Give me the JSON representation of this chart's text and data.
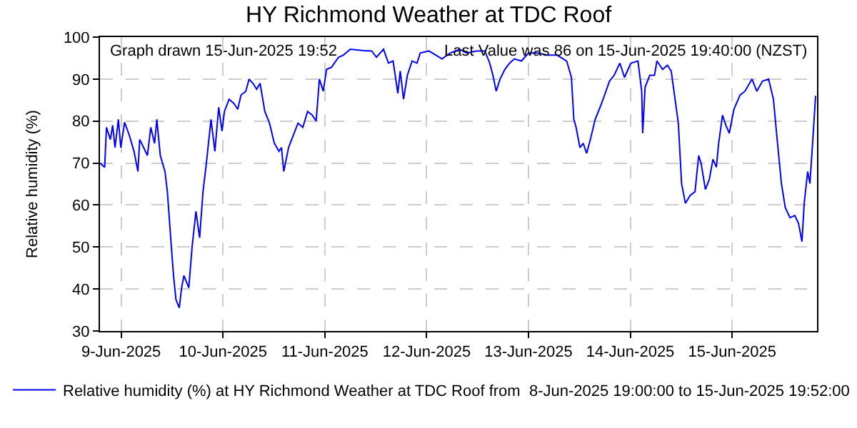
{
  "chart_data": {
    "type": "line",
    "title": "HY Richmond Weather at TDC Roof",
    "ylabel": "Relative humidity (%)",
    "annotations": [
      "Graph drawn 15-Jun-2025 19:52",
      "Last Value was 86 on 15-Jun-2025 19:40:00 (NZST)"
    ],
    "x": [
      "2025-06-08T19:00",
      "2025-06-08T20:06",
      "2025-06-08T20:32",
      "2025-06-08T21:27",
      "2025-06-08T21:59",
      "2025-06-08T22:33",
      "2025-06-08T23:20",
      "2025-06-08T23:54",
      "2025-06-09T00:48",
      "2025-06-09T01:55",
      "2025-06-09T03:01",
      "2025-06-09T03:56",
      "2025-06-09T04:22",
      "2025-06-09T05:17",
      "2025-06-09T06:11",
      "2025-06-09T06:58",
      "2025-06-09T07:52",
      "2025-06-09T08:24",
      "2025-06-09T09:13",
      "2025-06-09T10:19",
      "2025-06-09T10:53",
      "2025-06-09T11:46",
      "2025-06-09T12:20",
      "2025-06-09T12:54",
      "2025-06-09T13:41",
      "2025-06-09T14:15",
      "2025-06-09T14:47",
      "2025-06-09T15:56",
      "2025-06-09T16:42",
      "2025-06-09T17:37",
      "2025-06-09T18:29",
      "2025-06-09T19:17",
      "2025-06-09T20:04",
      "2025-06-09T21:10",
      "2025-06-09T22:05",
      "2025-06-09T22:59",
      "2025-06-09T23:46",
      "2025-06-10T00:20",
      "2025-06-10T01:26",
      "2025-06-10T02:33",
      "2025-06-10T03:28",
      "2025-06-10T04:14",
      "2025-06-10T05:22",
      "2025-06-10T06:09",
      "2025-06-10T07:03",
      "2025-06-10T07:56",
      "2025-06-10T08:44",
      "2025-06-10T09:51",
      "2025-06-10T10:57",
      "2025-06-10T12:06",
      "2025-06-10T13:12",
      "2025-06-10T13:47",
      "2025-06-10T14:19",
      "2025-06-10T15:27",
      "2025-06-10T16:34",
      "2025-06-10T17:40",
      "2025-06-10T18:49",
      "2025-06-10T19:56",
      "2025-06-10T21:02",
      "2025-06-10T21:57",
      "2025-06-10T22:43",
      "2025-06-10T23:38",
      "2025-06-11T00:24",
      "2025-06-11T01:33",
      "2025-06-11T03:13",
      "2025-06-11T04:20",
      "2025-06-11T06:01",
      "2025-06-11T08:48",
      "2025-06-11T11:03",
      "2025-06-11T12:10",
      "2025-06-11T13:50",
      "2025-06-11T14:59",
      "2025-06-11T16:05",
      "2025-06-11T17:12",
      "2025-06-11T17:46",
      "2025-06-11T18:33",
      "2025-06-11T19:27",
      "2025-06-11T20:34",
      "2025-06-11T21:43",
      "2025-06-11T22:29",
      "2025-06-12T00:30",
      "2025-06-12T02:11",
      "2025-06-12T03:37",
      "2025-06-12T05:32",
      "2025-06-12T07:47",
      "2025-06-12T09:28",
      "2025-06-12T11:41",
      "2025-06-12T13:43",
      "2025-06-12T14:51",
      "2025-06-12T15:37",
      "2025-06-12T16:23",
      "2025-06-12T17:18",
      "2025-06-12T18:25",
      "2025-06-12T19:33",
      "2025-06-12T20:40",
      "2025-06-12T22:20",
      "2025-06-13T00:01",
      "2025-06-13T02:17",
      "2025-06-13T04:29",
      "2025-06-13T06:45",
      "2025-06-13T09:00",
      "2025-06-13T10:07",
      "2025-06-13T10:41",
      "2025-06-13T11:13",
      "2025-06-13T12:07",
      "2025-06-13T12:54",
      "2025-06-13T13:42",
      "2025-06-13T14:35",
      "2025-06-13T15:43",
      "2025-06-13T17:04",
      "2025-06-13T17:56",
      "2025-06-13T19:05",
      "2025-06-13T20:11",
      "2025-06-13T21:32",
      "2025-06-13T22:38",
      "2025-06-14T00:07",
      "2025-06-14T01:48",
      "2025-06-14T02:41",
      "2025-06-14T02:55",
      "2025-06-14T03:29",
      "2025-06-14T04:35",
      "2025-06-14T05:42",
      "2025-06-14T06:16",
      "2025-06-14T07:37",
      "2025-06-14T08:44",
      "2025-06-14T09:38",
      "2025-06-14T11:19",
      "2025-06-14T12:05",
      "2025-06-14T12:59",
      "2025-06-14T14:06",
      "2025-06-14T15:15",
      "2025-06-14T16:07",
      "2025-06-14T16:41",
      "2025-06-14T17:42",
      "2025-06-14T18:37",
      "2025-06-14T19:29",
      "2025-06-14T20:17",
      "2025-06-14T20:49",
      "2025-06-14T21:44",
      "2025-06-14T22:31",
      "2025-06-14T23:19",
      "2025-06-15T00:25",
      "2025-06-15T01:52",
      "2025-06-15T03:01",
      "2025-06-15T04:41",
      "2025-06-15T05:48",
      "2025-06-15T07:09",
      "2025-06-15T08:35",
      "2025-06-15T09:44",
      "2025-06-15T10:31",
      "2025-06-15T11:37",
      "2025-06-15T12:31",
      "2025-06-15T13:38",
      "2025-06-15T14:46",
      "2025-06-15T15:39",
      "2025-06-15T16:27",
      "2025-06-15T16:59",
      "2025-06-15T17:48",
      "2025-06-15T18:20",
      "2025-06-15T19:01",
      "2025-06-15T19:40"
    ],
    "series": [
      {
        "name": "Relative humidity (%) at HY Richmond Weather at TDC Roof from  8-Jun-2025 19:00:00 to 15-Jun-2025 19:52:00",
        "color": "#0000ff",
        "values": [
          70,
          69,
          78.5,
          75.6,
          79,
          73.7,
          80.4,
          73.7,
          79.7,
          76.6,
          72.8,
          68,
          75.6,
          73.7,
          71.8,
          78.5,
          74.7,
          80.4,
          71.8,
          68,
          63.2,
          50.8,
          43.2,
          37.5,
          35.5,
          40.3,
          43.2,
          40.3,
          49.9,
          58.5,
          52.2,
          63.2,
          69.9,
          80.4,
          72.8,
          83.3,
          77.6,
          82.3,
          85.2,
          84.2,
          82.8,
          86.2,
          87.1,
          90,
          89,
          87.6,
          89,
          82.3,
          79.5,
          74.7,
          72.8,
          73.7,
          68,
          73.7,
          76.6,
          79.5,
          78.5,
          82.3,
          81.4,
          80,
          90,
          87.1,
          92.3,
          92.8,
          95.2,
          95.7,
          97.1,
          96.8,
          96.7,
          95.2,
          97.1,
          93.8,
          94.3,
          86.6,
          91.9,
          85.2,
          90.9,
          94.3,
          93.8,
          96.2,
          96.7,
          95.7,
          94.8,
          96.2,
          97.1,
          96.2,
          96.7,
          96.7,
          93.8,
          90.9,
          87.1,
          90,
          92.3,
          93.8,
          94.8,
          94.3,
          96.2,
          96.2,
          95.7,
          95.7,
          94.3,
          90.4,
          80.4,
          78.5,
          73.7,
          74.7,
          72.3,
          75.6,
          80.4,
          83.8,
          86.2,
          89.5,
          90.9,
          93.8,
          90.4,
          93.8,
          94.3,
          87.1,
          77.1,
          88.1,
          90.9,
          90.9,
          94.3,
          92.3,
          93.3,
          91.9,
          79.5,
          65.1,
          60.4,
          62.3,
          63.2,
          71.8,
          69.9,
          63.7,
          66.1,
          70.9,
          69,
          74.7,
          81.4,
          79,
          77.1,
          82.8,
          86.2,
          87.1,
          90,
          87.1,
          89.5,
          90,
          85.2,
          76.6,
          65.1,
          59.4,
          57,
          57.5,
          55.6,
          51.3,
          60.4,
          68,
          65.1,
          75.6,
          86
        ]
      }
    ],
    "xlim": [
      "2025-06-08T19:00",
      "2025-06-15T20:00"
    ],
    "xticks": [
      {
        "value": "2025-06-09",
        "label": "9-Jun-2025"
      },
      {
        "value": "2025-06-10",
        "label": "10-Jun-2025"
      },
      {
        "value": "2025-06-11",
        "label": "11-Jun-2025"
      },
      {
        "value": "2025-06-12",
        "label": "12-Jun-2025"
      },
      {
        "value": "2025-06-13",
        "label": "13-Jun-2025"
      },
      {
        "value": "2025-06-14",
        "label": "14-Jun-2025"
      },
      {
        "value": "2025-06-15",
        "label": "15-Jun-2025"
      }
    ],
    "ylim": [
      30,
      100
    ],
    "yticks": [
      30,
      40,
      50,
      60,
      70,
      80,
      90,
      100
    ],
    "grid": true,
    "legend": "bottom",
    "marker": "none",
    "line_style": "solid"
  }
}
